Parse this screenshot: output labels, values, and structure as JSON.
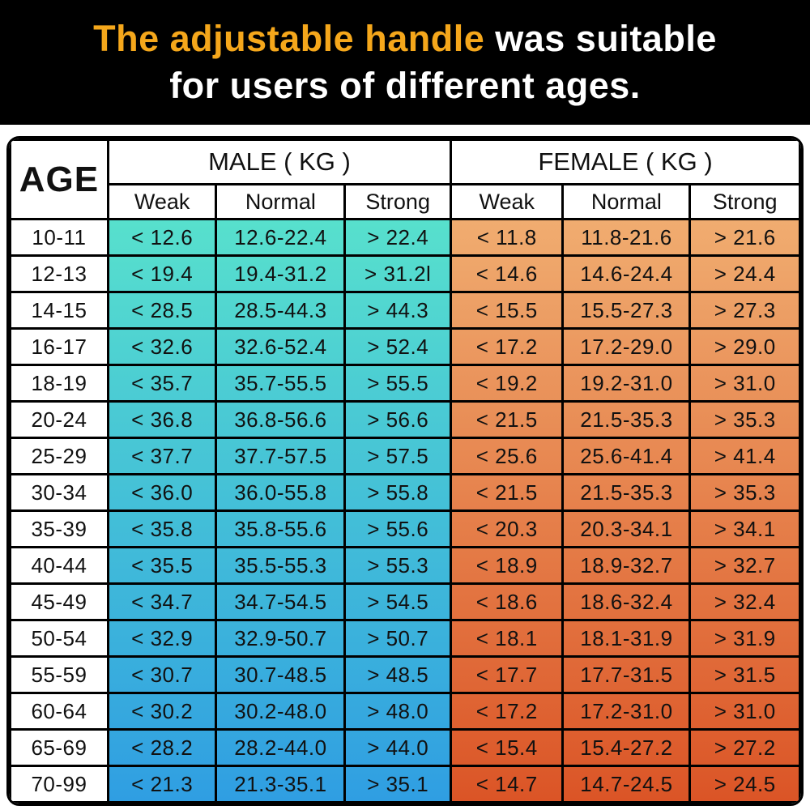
{
  "banner": {
    "bg_color": "#000000",
    "highlight_color": "#F5A71B",
    "text_color": "#FFFFFF",
    "title_highlight": "The adjustable handle",
    "title_rest_line1": " was suitable",
    "title_line2": "for users of different ages."
  },
  "table": {
    "age_header": "AGE",
    "male_header": "MALE ( KG )",
    "female_header": "FEMALE ( KG )",
    "sub_headers": [
      "Weak",
      "Normal",
      "Strong"
    ],
    "border_color": "#000000",
    "male_gradient_top": "#57E0CD",
    "male_gradient_bottom": "#2F9EE2",
    "female_gradient_top": "#F0AC70",
    "female_gradient_bottom": "#DB5426"
  },
  "chart_data": {
    "type": "table",
    "title": "The adjustable handle was suitable for users of different ages.",
    "columns": [
      "AGE",
      "MALE Weak (KG)",
      "MALE Normal (KG)",
      "MALE Strong (KG)",
      "FEMALE Weak (KG)",
      "FEMALE Normal (KG)",
      "FEMALE Strong (KG)"
    ],
    "rows": [
      {
        "age": "10-11",
        "male": [
          "< 12.6",
          "12.6-22.4",
          "> 22.4"
        ],
        "female": [
          "< 11.8",
          "11.8-21.6",
          "> 21.6"
        ]
      },
      {
        "age": "12-13",
        "male": [
          "< 19.4",
          "19.4-31.2",
          "> 31.2l"
        ],
        "female": [
          "< 14.6",
          "14.6-24.4",
          "> 24.4"
        ]
      },
      {
        "age": "14-15",
        "male": [
          "< 28.5",
          "28.5-44.3",
          "> 44.3"
        ],
        "female": [
          "< 15.5",
          "15.5-27.3",
          "> 27.3"
        ]
      },
      {
        "age": "16-17",
        "male": [
          "< 32.6",
          "32.6-52.4",
          "> 52.4"
        ],
        "female": [
          "< 17.2",
          "17.2-29.0",
          "> 29.0"
        ]
      },
      {
        "age": "18-19",
        "male": [
          "< 35.7",
          "35.7-55.5",
          "> 55.5"
        ],
        "female": [
          "< 19.2",
          "19.2-31.0",
          "> 31.0"
        ]
      },
      {
        "age": "20-24",
        "male": [
          "< 36.8",
          "36.8-56.6",
          "> 56.6"
        ],
        "female": [
          "< 21.5",
          "21.5-35.3",
          "> 35.3"
        ]
      },
      {
        "age": "25-29",
        "male": [
          "< 37.7",
          "37.7-57.5",
          "> 57.5"
        ],
        "female": [
          "< 25.6",
          "25.6-41.4",
          "> 41.4"
        ]
      },
      {
        "age": "30-34",
        "male": [
          "< 36.0",
          "36.0-55.8",
          "> 55.8"
        ],
        "female": [
          "< 21.5",
          "21.5-35.3",
          "> 35.3"
        ]
      },
      {
        "age": "35-39",
        "male": [
          "< 35.8",
          "35.8-55.6",
          "> 55.6"
        ],
        "female": [
          "< 20.3",
          "20.3-34.1",
          "> 34.1"
        ]
      },
      {
        "age": "40-44",
        "male": [
          "< 35.5",
          "35.5-55.3",
          "> 55.3"
        ],
        "female": [
          "< 18.9",
          "18.9-32.7",
          "> 32.7"
        ]
      },
      {
        "age": "45-49",
        "male": [
          "< 34.7",
          "34.7-54.5",
          "> 54.5"
        ],
        "female": [
          "< 18.6",
          "18.6-32.4",
          "> 32.4"
        ]
      },
      {
        "age": "50-54",
        "male": [
          "< 32.9",
          "32.9-50.7",
          "> 50.7"
        ],
        "female": [
          "< 18.1",
          "18.1-31.9",
          "> 31.9"
        ]
      },
      {
        "age": "55-59",
        "male": [
          "< 30.7",
          "30.7-48.5",
          "> 48.5"
        ],
        "female": [
          "< 17.7",
          "17.7-31.5",
          "> 31.5"
        ]
      },
      {
        "age": "60-64",
        "male": [
          "< 30.2",
          "30.2-48.0",
          "> 48.0"
        ],
        "female": [
          "< 17.2",
          "17.2-31.0",
          "> 31.0"
        ]
      },
      {
        "age": "65-69",
        "male": [
          "< 28.2",
          "28.2-44.0",
          "> 44.0"
        ],
        "female": [
          "< 15.4",
          "15.4-27.2",
          "> 27.2"
        ]
      },
      {
        "age": "70-99",
        "male": [
          "< 21.3",
          "21.3-35.1",
          "> 35.1"
        ],
        "female": [
          "< 14.7",
          "14.7-24.5",
          "> 24.5"
        ]
      }
    ]
  }
}
